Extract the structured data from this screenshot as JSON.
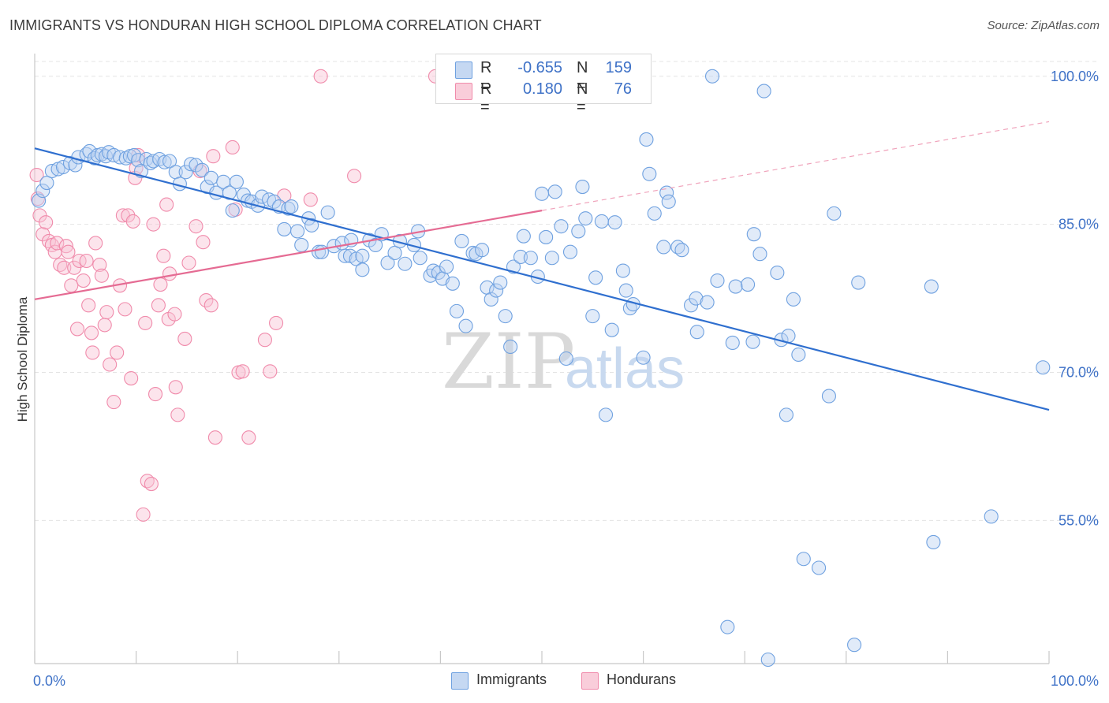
{
  "header": {
    "title": "IMMIGRANTS VS HONDURAN HIGH SCHOOL DIPLOMA CORRELATION CHART",
    "source": "Source: ZipAtlas.com"
  },
  "watermark": {
    "zip": "ZIP",
    "atlas": "atlas"
  },
  "legend": {
    "immigrants": {
      "r_label": "R =",
      "r_value": "-0.655",
      "n_label": "N =",
      "n_value": "159",
      "color": "#6fa1e0"
    },
    "hondurans": {
      "r_label": "R =",
      "r_value": "0.180",
      "n_label": "N =",
      "n_value": "76",
      "color": "#f08bab"
    }
  },
  "bottom_legend": {
    "immigrants": "Immigrants",
    "hondurans": "Hondurans"
  },
  "chart_data": {
    "type": "scatter",
    "title": "IMMIGRANTS VS HONDURAN HIGH SCHOOL DIPLOMA CORRELATION CHART",
    "xlabel": "",
    "ylabel": "High School Diploma",
    "xlim": [
      0,
      100
    ],
    "ylim": [
      40.5,
      101.5
    ],
    "x_tick_labels": [
      "0.0%",
      "100.0%"
    ],
    "y_ticks": [
      55,
      70,
      85,
      100
    ],
    "y_tick_labels": [
      "55.0%",
      "70.0%",
      "85.0%",
      "100.0%"
    ],
    "grid": true,
    "series": [
      {
        "name": "Immigrants",
        "color": "#6fa1e0",
        "trend": {
          "x": [
            0,
            100
          ],
          "y": [
            92.7,
            66.2
          ]
        },
        "points": [
          [
            0.4,
            87.4
          ],
          [
            0.8,
            88.4
          ],
          [
            1.2,
            89.2
          ],
          [
            1.7,
            90.4
          ],
          [
            2.3,
            90.6
          ],
          [
            2.8,
            90.8
          ],
          [
            3.5,
            91.2
          ],
          [
            4.0,
            91.0
          ],
          [
            4.3,
            91.8
          ],
          [
            5.1,
            92.1
          ],
          [
            5.4,
            92.4
          ],
          [
            5.9,
            91.7
          ],
          [
            6.2,
            92.0
          ],
          [
            6.6,
            92.1
          ],
          [
            7.0,
            91.9
          ],
          [
            7.3,
            92.3
          ],
          [
            7.8,
            92.0
          ],
          [
            8.4,
            91.8
          ],
          [
            9.0,
            91.7
          ],
          [
            9.4,
            91.9
          ],
          [
            9.8,
            92.0
          ],
          [
            10.2,
            91.5
          ],
          [
            10.5,
            90.4
          ],
          [
            11.0,
            91.6
          ],
          [
            11.4,
            91.2
          ],
          [
            11.7,
            91.4
          ],
          [
            12.3,
            91.6
          ],
          [
            12.8,
            91.3
          ],
          [
            13.3,
            91.4
          ],
          [
            13.9,
            90.3
          ],
          [
            14.3,
            89.1
          ],
          [
            14.9,
            90.3
          ],
          [
            15.4,
            91.1
          ],
          [
            15.9,
            91.0
          ],
          [
            16.5,
            90.5
          ],
          [
            17.0,
            88.8
          ],
          [
            17.4,
            89.7
          ],
          [
            17.9,
            88.2
          ],
          [
            18.6,
            89.3
          ],
          [
            19.2,
            88.2
          ],
          [
            19.5,
            86.4
          ],
          [
            19.9,
            89.3
          ],
          [
            20.6,
            88.0
          ],
          [
            21.0,
            87.4
          ],
          [
            21.4,
            87.3
          ],
          [
            22.0,
            86.9
          ],
          [
            22.4,
            87.8
          ],
          [
            23.1,
            87.5
          ],
          [
            23.6,
            87.3
          ],
          [
            24.1,
            86.8
          ],
          [
            24.6,
            84.5
          ],
          [
            25.0,
            86.6
          ],
          [
            25.3,
            86.8
          ],
          [
            25.9,
            84.3
          ],
          [
            26.3,
            82.9
          ],
          [
            27.0,
            85.6
          ],
          [
            27.3,
            84.9
          ],
          [
            28.0,
            82.2
          ],
          [
            28.3,
            82.2
          ],
          [
            28.9,
            86.2
          ],
          [
            29.5,
            82.8
          ],
          [
            30.3,
            83.1
          ],
          [
            30.6,
            81.8
          ],
          [
            31.1,
            81.8
          ],
          [
            31.7,
            81.5
          ],
          [
            32.3,
            80.4
          ],
          [
            31.2,
            83.4
          ],
          [
            32.3,
            81.8
          ],
          [
            33.0,
            83.4
          ],
          [
            33.6,
            82.9
          ],
          [
            34.2,
            84.0
          ],
          [
            34.8,
            81.1
          ],
          [
            35.5,
            82.1
          ],
          [
            36.0,
            83.3
          ],
          [
            36.5,
            81.0
          ],
          [
            37.4,
            82.9
          ],
          [
            38.0,
            81.6
          ],
          [
            37.8,
            84.3
          ],
          [
            39.0,
            79.8
          ],
          [
            39.3,
            80.3
          ],
          [
            39.8,
            80.1
          ],
          [
            40.2,
            79.5
          ],
          [
            40.6,
            80.7
          ],
          [
            41.2,
            79.0
          ],
          [
            41.6,
            76.2
          ],
          [
            42.1,
            83.3
          ],
          [
            42.5,
            74.7
          ],
          [
            43.2,
            82.1
          ],
          [
            43.5,
            82.0
          ],
          [
            44.1,
            82.4
          ],
          [
            44.6,
            78.6
          ],
          [
            45.0,
            77.4
          ],
          [
            45.5,
            78.3
          ],
          [
            45.9,
            79.1
          ],
          [
            46.4,
            75.7
          ],
          [
            46.9,
            72.6
          ],
          [
            47.2,
            80.7
          ],
          [
            47.9,
            81.7
          ],
          [
            48.2,
            83.8
          ],
          [
            48.9,
            81.6
          ],
          [
            49.6,
            79.7
          ],
          [
            50.0,
            88.1
          ],
          [
            50.4,
            83.7
          ],
          [
            51.0,
            81.6
          ],
          [
            51.3,
            88.3
          ],
          [
            51.9,
            84.8
          ],
          [
            52.4,
            71.4
          ],
          [
            52.8,
            82.2
          ],
          [
            53.6,
            84.3
          ],
          [
            54.0,
            88.8
          ],
          [
            54.3,
            85.6
          ],
          [
            55.0,
            75.7
          ],
          [
            55.3,
            79.6
          ],
          [
            55.9,
            85.3
          ],
          [
            56.3,
            65.7
          ],
          [
            56.9,
            74.3
          ],
          [
            57.2,
            85.2
          ],
          [
            58.0,
            80.3
          ],
          [
            58.3,
            78.3
          ],
          [
            58.7,
            76.5
          ],
          [
            59.0,
            76.9
          ],
          [
            60.0,
            71.5
          ],
          [
            60.3,
            93.6
          ],
          [
            60.6,
            90.1
          ],
          [
            61.1,
            86.1
          ],
          [
            62.0,
            82.7
          ],
          [
            62.3,
            88.2
          ],
          [
            62.5,
            87.3
          ],
          [
            63.4,
            82.7
          ],
          [
            63.8,
            82.4
          ],
          [
            64.7,
            76.8
          ],
          [
            65.2,
            77.5
          ],
          [
            65.3,
            74.1
          ],
          [
            66.3,
            77.1
          ],
          [
            66.8,
            100.0
          ],
          [
            67.3,
            79.3
          ],
          [
            68.3,
            44.2
          ],
          [
            68.8,
            73.0
          ],
          [
            69.1,
            78.7
          ],
          [
            70.3,
            78.9
          ],
          [
            70.8,
            73.1
          ],
          [
            70.9,
            84.0
          ],
          [
            71.5,
            82.0
          ],
          [
            71.9,
            98.5
          ],
          [
            72.3,
            40.9
          ],
          [
            73.2,
            80.1
          ],
          [
            73.6,
            73.3
          ],
          [
            74.1,
            65.7
          ],
          [
            74.3,
            73.7
          ],
          [
            74.8,
            77.4
          ],
          [
            75.3,
            71.8
          ],
          [
            75.8,
            51.1
          ],
          [
            77.3,
            50.2
          ],
          [
            78.3,
            67.6
          ],
          [
            78.8,
            86.1
          ],
          [
            80.8,
            42.4
          ],
          [
            81.2,
            79.1
          ],
          [
            88.4,
            78.7
          ],
          [
            88.6,
            52.8
          ],
          [
            94.3,
            55.4
          ],
          [
            99.4,
            70.5
          ]
        ]
      },
      {
        "name": "Hondurans",
        "color": "#f08bab",
        "trend": {
          "x": [
            0,
            50.0
          ],
          "y": [
            77.4,
            86.4
          ]
        },
        "trend_extension": {
          "x": [
            50.0,
            100
          ],
          "y": [
            86.4,
            95.4
          ]
        },
        "points": [
          [
            0.2,
            90.0
          ],
          [
            0.3,
            87.6
          ],
          [
            0.5,
            85.9
          ],
          [
            0.8,
            84.0
          ],
          [
            1.1,
            85.2
          ],
          [
            1.4,
            83.3
          ],
          [
            1.7,
            82.9
          ],
          [
            2.0,
            82.2
          ],
          [
            2.2,
            83.1
          ],
          [
            2.5,
            80.9
          ],
          [
            2.9,
            80.6
          ],
          [
            3.1,
            82.8
          ],
          [
            3.3,
            82.2
          ],
          [
            3.6,
            78.8
          ],
          [
            3.9,
            80.6
          ],
          [
            4.2,
            74.4
          ],
          [
            4.4,
            81.3
          ],
          [
            4.8,
            79.3
          ],
          [
            5.1,
            81.3
          ],
          [
            5.3,
            76.8
          ],
          [
            5.6,
            74.0
          ],
          [
            5.7,
            72.0
          ],
          [
            6.0,
            83.1
          ],
          [
            6.4,
            80.9
          ],
          [
            6.6,
            79.8
          ],
          [
            6.9,
            74.8
          ],
          [
            7.1,
            76.1
          ],
          [
            7.4,
            70.8
          ],
          [
            7.8,
            67.0
          ],
          [
            8.1,
            72.0
          ],
          [
            8.4,
            78.8
          ],
          [
            8.7,
            85.9
          ],
          [
            8.9,
            76.4
          ],
          [
            9.2,
            85.9
          ],
          [
            9.5,
            69.4
          ],
          [
            9.7,
            85.3
          ],
          [
            9.9,
            89.7
          ],
          [
            10.0,
            90.7
          ],
          [
            10.2,
            92.0
          ],
          [
            10.7,
            55.6
          ],
          [
            10.9,
            75.0
          ],
          [
            11.1,
            59.0
          ],
          [
            11.5,
            58.7
          ],
          [
            11.7,
            85.0
          ],
          [
            11.9,
            67.8
          ],
          [
            12.2,
            76.8
          ],
          [
            12.4,
            78.9
          ],
          [
            12.7,
            81.8
          ],
          [
            13.0,
            87.0
          ],
          [
            13.2,
            75.4
          ],
          [
            13.3,
            80.0
          ],
          [
            13.8,
            75.9
          ],
          [
            13.9,
            68.5
          ],
          [
            14.1,
            65.7
          ],
          [
            14.8,
            73.4
          ],
          [
            15.2,
            81.1
          ],
          [
            15.9,
            84.8
          ],
          [
            16.3,
            90.4
          ],
          [
            16.6,
            83.2
          ],
          [
            16.9,
            77.3
          ],
          [
            17.4,
            76.8
          ],
          [
            17.6,
            91.9
          ],
          [
            17.8,
            63.4
          ],
          [
            19.5,
            92.8
          ],
          [
            19.8,
            86.5
          ],
          [
            20.1,
            70.0
          ],
          [
            20.5,
            70.1
          ],
          [
            21.1,
            63.4
          ],
          [
            22.7,
            73.3
          ],
          [
            23.2,
            70.1
          ],
          [
            23.8,
            75.0
          ],
          [
            24.6,
            87.9
          ],
          [
            27.2,
            87.5
          ],
          [
            28.2,
            100.0
          ],
          [
            31.5,
            89.9
          ],
          [
            39.5,
            100.0
          ]
        ]
      }
    ]
  }
}
